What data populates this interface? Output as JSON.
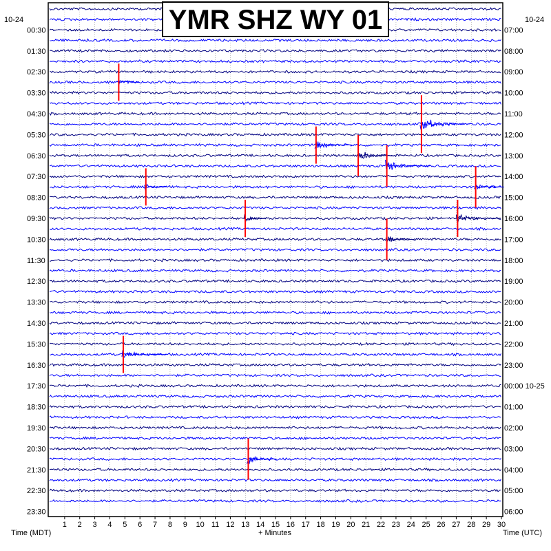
{
  "chart_data": {
    "type": "line",
    "title": "YMR SHZ WY 01",
    "left_date": "10-24",
    "right_date": "10-24",
    "xlabel": "+ Minutes",
    "left_axis_label": "Time (MDT)",
    "right_axis_label": "Time (UTC)",
    "x_ticks": [
      1,
      2,
      3,
      4,
      5,
      6,
      7,
      8,
      9,
      10,
      11,
      12,
      13,
      14,
      15,
      16,
      17,
      18,
      19,
      20,
      21,
      22,
      23,
      24,
      25,
      26,
      27,
      28,
      29,
      30
    ],
    "xlim": [
      0,
      30
    ],
    "left_time_labels": [
      "00:30",
      "01:30",
      "02:30",
      "03:30",
      "04:30",
      "05:30",
      "06:30",
      "07:30",
      "08:30",
      "09:30",
      "10:30",
      "11:30",
      "12:30",
      "13:30",
      "14:30",
      "15:30",
      "16:30",
      "17:30",
      "18:30",
      "19:30",
      "20:30",
      "21:30",
      "22:30",
      "23:30"
    ],
    "right_time_labels": [
      "07:00",
      "08:00",
      "09:00",
      "10:00",
      "11:00",
      "12:00",
      "13:00",
      "14:00",
      "15:00",
      "16:00",
      "17:00",
      "18:00",
      "19:00",
      "20:00",
      "21:00",
      "22:00",
      "23:00",
      "00:00 10-25",
      "01:00",
      "02:00",
      "03:00",
      "04:00",
      "05:00",
      "06:00"
    ],
    "trace_colors": [
      "#000080",
      "#0000ff"
    ],
    "clip_color": "#ff0000",
    "trace_count": 48,
    "trace_interval_minutes": 30,
    "events": [
      {
        "trace": 7,
        "minute": 4.5,
        "amplitude": 9,
        "duration": 1.5,
        "clipped": true
      },
      {
        "trace": 11,
        "minute": 24.6,
        "amplitude": 14,
        "duration": 3.0,
        "clipped": true
      },
      {
        "trace": 13,
        "minute": 17.6,
        "amplitude": 9,
        "duration": 2.5,
        "clipped": true
      },
      {
        "trace": 14,
        "minute": 20.4,
        "amplitude": 10,
        "duration": 2.5,
        "clipped": true
      },
      {
        "trace": 15,
        "minute": 22.3,
        "amplitude": 10,
        "duration": 3.0,
        "clipped": true
      },
      {
        "trace": 17,
        "minute": 6.3,
        "amplitude": 9,
        "duration": 1.5,
        "clipped": true
      },
      {
        "trace": 17,
        "minute": 28.2,
        "amplitude": 10,
        "duration": 2.0,
        "clipped": true
      },
      {
        "trace": 20,
        "minute": 12.9,
        "amplitude": 9,
        "duration": 1.5,
        "clipped": true
      },
      {
        "trace": 20,
        "minute": 27.0,
        "amplitude": 9,
        "duration": 3.0,
        "clipped": true
      },
      {
        "trace": 22,
        "minute": 22.3,
        "amplitude": 10,
        "duration": 2.0,
        "clipped": true
      },
      {
        "trace": 33,
        "minute": 4.8,
        "amplitude": 9,
        "duration": 3.0,
        "clipped": true
      },
      {
        "trace": 43,
        "minute": 13.1,
        "amplitude": 10,
        "duration": 2.0,
        "clipped": true
      }
    ]
  }
}
